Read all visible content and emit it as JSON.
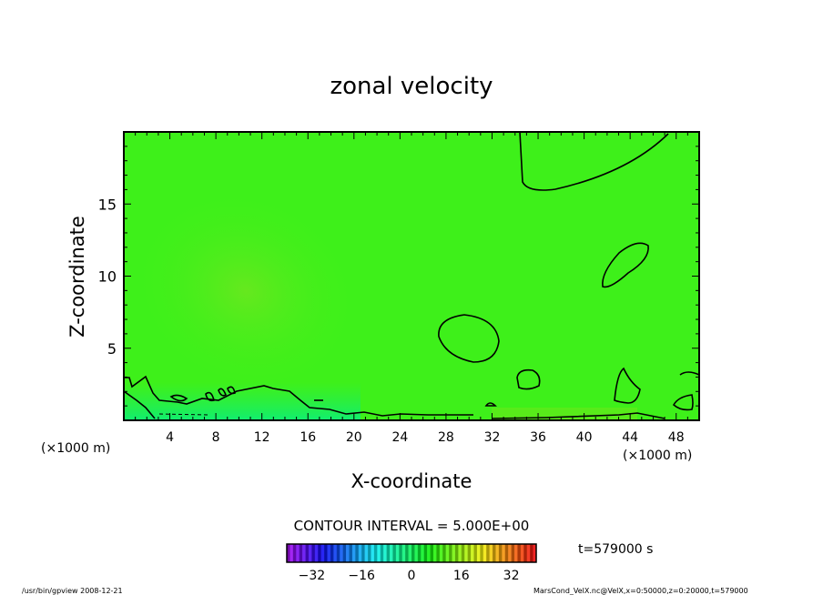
{
  "chart_data": {
    "type": "heatmap",
    "title": "zonal velocity",
    "xlabel": "X-coordinate",
    "ylabel": "Z-coordinate",
    "x_unit": "(×1000 m)",
    "y_unit": "(×1000 m)",
    "xlim": [
      0,
      50
    ],
    "ylim": [
      0,
      20
    ],
    "x_ticks": [
      4,
      8,
      12,
      16,
      20,
      24,
      28,
      32,
      36,
      40,
      44,
      48
    ],
    "y_ticks": [
      5,
      10,
      15
    ],
    "contour_interval": "CONTOUR INTERVAL = 5.000E+00",
    "colorbar": {
      "range": [
        -40,
        40
      ],
      "tick_labels": [
        "-32",
        "-16",
        "0",
        "16",
        "32"
      ],
      "tick_values": [
        -32,
        -16,
        0,
        16,
        32
      ]
    },
    "colors": {
      "field": "#3ef01a",
      "field_light": "#66ee22",
      "field_low": "#22ee66"
    },
    "time_label": "t=579000 s"
  },
  "footer": {
    "left": "/usr/bin/gpview   2008-12-21",
    "right": "MarsCond_VelX.nc@VelX,x=0:50000,z=0:20000,t=579000"
  }
}
